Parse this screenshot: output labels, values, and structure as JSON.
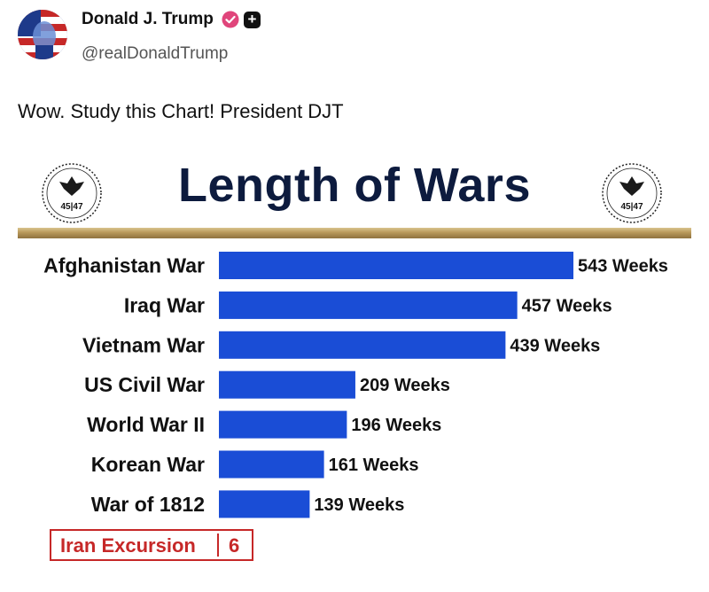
{
  "post": {
    "author_name": "Donald J. Trump",
    "handle": "@realDonaldTrump",
    "text": "Wow. Study this Chart! President DJT"
  },
  "colors": {
    "bar": "#1a4dd6",
    "title": "#0d1b3e",
    "highlight": "#c62828",
    "gold": "#b8985a"
  },
  "icons": [
    "avatar-image",
    "verified-badge-icon",
    "plus-badge-icon",
    "presidential-seal-icon"
  ],
  "seal": {
    "text": "45|47",
    "left_number": "45",
    "right_number": "47"
  },
  "chart_data": {
    "type": "bar",
    "orientation": "horizontal",
    "title": "Length of Wars",
    "categories": [
      "Afghanistan War",
      "Iraq War",
      "Vietnam War",
      "US Civil War",
      "World War II",
      "Korean War",
      "War of 1812"
    ],
    "values": [
      543,
      457,
      439,
      209,
      196,
      161,
      139
    ],
    "value_labels": [
      "543 Weeks",
      "457 Weeks",
      "439 Weeks",
      "209 Weeks",
      "196 Weeks",
      "161 Weeks",
      "139 Weeks"
    ],
    "unit": "Weeks",
    "grid": false,
    "legend": "none",
    "highlight": {
      "label": "Iran Excursion",
      "value": 6,
      "value_label": "6"
    }
  }
}
